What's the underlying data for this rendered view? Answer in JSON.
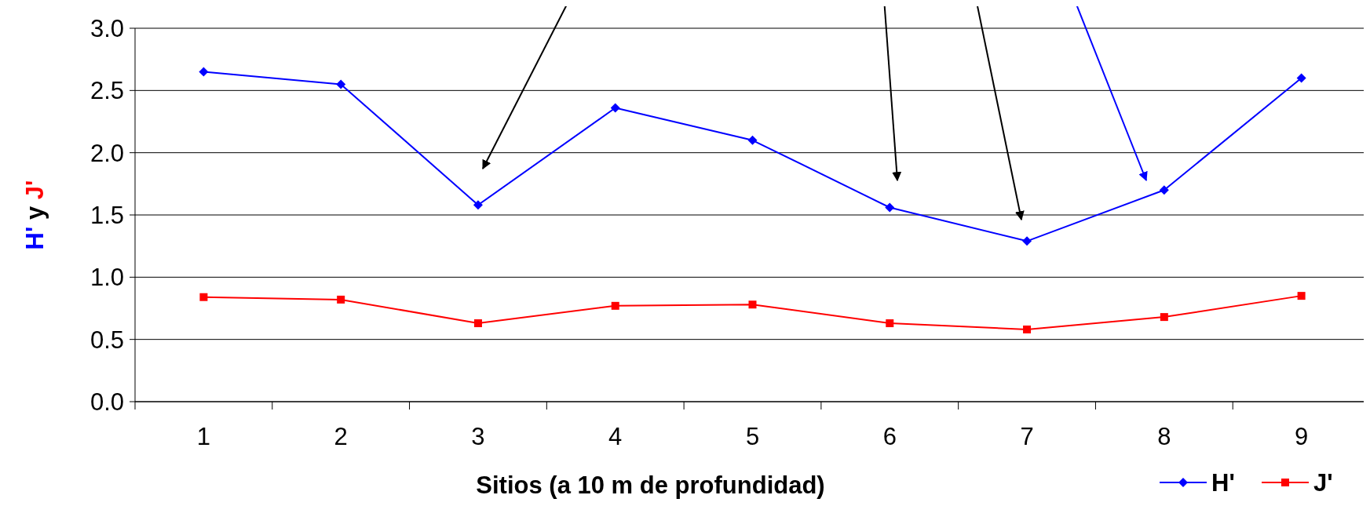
{
  "chart_data": {
    "type": "line",
    "xlabel": "Sitios (a 10 m de profundidad)",
    "ylabel": "H' y J'",
    "categories": [
      "1",
      "2",
      "3",
      "4",
      "5",
      "6",
      "7",
      "8",
      "9"
    ],
    "series": [
      {
        "name": "H'",
        "color": "#0000ff",
        "marker": "diamond",
        "values": [
          2.65,
          2.55,
          1.58,
          2.36,
          2.1,
          1.56,
          1.29,
          1.7,
          2.6
        ]
      },
      {
        "name": "J'",
        "color": "#ff0000",
        "marker": "square",
        "values": [
          0.84,
          0.82,
          0.63,
          0.77,
          0.78,
          0.63,
          0.58,
          0.68,
          0.85
        ]
      }
    ],
    "ylim": [
      0,
      3
    ],
    "yticks": [
      {
        "value": 0,
        "label": "0.0"
      },
      {
        "value": 0.5,
        "label": "0.5"
      },
      {
        "value": 1,
        "label": "1.0"
      },
      {
        "value": 1.5,
        "label": "1.5"
      },
      {
        "value": 2,
        "label": "2.0"
      },
      {
        "value": 2.5,
        "label": "2.5"
      },
      {
        "value": 3,
        "label": "3.0"
      }
    ],
    "grid": "y",
    "legend": "bottom right",
    "line_style": "solid"
  }
}
